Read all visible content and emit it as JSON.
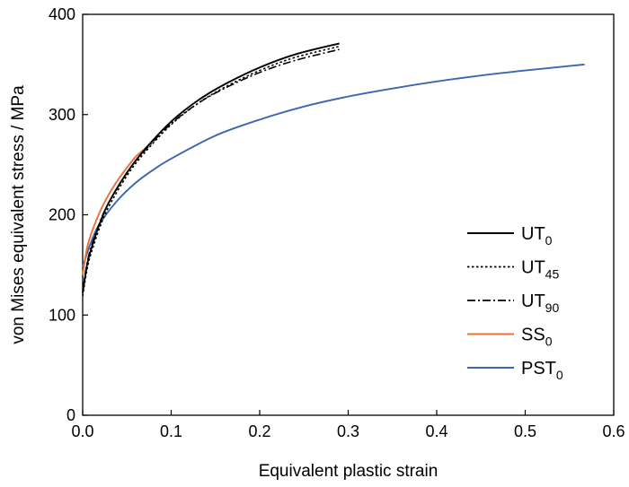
{
  "chart_data": {
    "type": "line",
    "title": "",
    "xlabel": "Equivalent plastic strain",
    "ylabel": "von Mises equivalent stress / MPa",
    "xlim": [
      0,
      0.6
    ],
    "ylim": [
      0,
      400
    ],
    "xticks": [
      "0.0",
      "0.1",
      "0.2",
      "0.3",
      "0.4",
      "0.5",
      "0.6"
    ],
    "yticks": [
      "0",
      "100",
      "200",
      "300",
      "400"
    ],
    "grid": false,
    "legend_position": "center-right",
    "series": [
      {
        "name": "UT",
        "subscript": "0",
        "color": "#000000",
        "linestyle": "solid",
        "x": [
          0.0,
          0.005,
          0.01,
          0.02,
          0.03,
          0.05,
          0.07,
          0.1,
          0.13,
          0.16,
          0.2,
          0.24,
          0.29
        ],
        "y": [
          122,
          150,
          167,
          193,
          213,
          242,
          265,
          293,
          314,
          330,
          347,
          360,
          371
        ]
      },
      {
        "name": "UT",
        "subscript": "45",
        "color": "#000000",
        "linestyle": "dotted",
        "x": [
          0.0,
          0.005,
          0.01,
          0.02,
          0.03,
          0.05,
          0.07,
          0.1,
          0.13,
          0.16,
          0.2,
          0.24,
          0.29
        ],
        "y": [
          119,
          146,
          163,
          189,
          209,
          239,
          262,
          290,
          311,
          327,
          344,
          357,
          368
        ]
      },
      {
        "name": "UT",
        "subscript": "90",
        "color": "#000000",
        "linestyle": "dashdot",
        "x": [
          0.0,
          0.005,
          0.01,
          0.02,
          0.03,
          0.05,
          0.07,
          0.1,
          0.13,
          0.16,
          0.2,
          0.24,
          0.29
        ],
        "y": [
          125,
          152,
          169,
          194,
          213,
          242,
          264,
          291,
          311,
          326,
          342,
          354,
          365
        ]
      },
      {
        "name": "SS",
        "subscript": "0",
        "color": "#e8703a",
        "linestyle": "solid",
        "x": [
          0.0,
          0.005,
          0.01,
          0.02,
          0.03,
          0.04,
          0.05,
          0.06,
          0.073
        ],
        "y": [
          140,
          167,
          182,
          204,
          221,
          235,
          247,
          258,
          268
        ]
      },
      {
        "name": "PST",
        "subscript": "0",
        "color": "#3d65b0",
        "linestyle": "solid",
        "x": [
          0.0,
          0.01,
          0.02,
          0.04,
          0.06,
          0.08,
          0.1,
          0.15,
          0.2,
          0.25,
          0.3,
          0.35,
          0.4,
          0.45,
          0.5,
          0.567
        ],
        "y": [
          148,
          174,
          192,
          215,
          232,
          245,
          256,
          279,
          295,
          308,
          318,
          326,
          333,
          339,
          344,
          350
        ]
      }
    ]
  }
}
